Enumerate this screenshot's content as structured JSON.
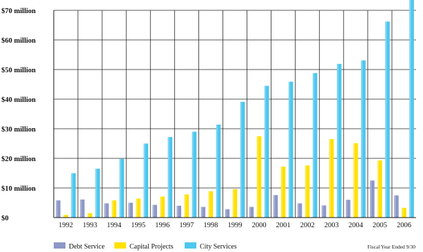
{
  "chart_data": {
    "type": "bar",
    "title": "",
    "xlabel": "",
    "ylabel": "",
    "ylim": [
      0,
      70
    ],
    "y_ticks": [
      {
        "value": 0,
        "label": "$0"
      },
      {
        "value": 10,
        "label": "$10 million"
      },
      {
        "value": 20,
        "label": "$20 million"
      },
      {
        "value": 30,
        "label": "$30 million"
      },
      {
        "value": 40,
        "label": "$40 million"
      },
      {
        "value": 50,
        "label": "$50 million"
      },
      {
        "value": 60,
        "label": "$60 million"
      },
      {
        "value": 70,
        "label": "$70 million"
      }
    ],
    "categories": [
      "1992",
      "1993",
      "1994",
      "1995",
      "1996",
      "1997",
      "1998",
      "1999",
      "2000",
      "2001",
      "2002",
      "2003",
      "2004",
      "2005",
      "2006"
    ],
    "series": [
      {
        "name": "Debt Service",
        "color": "#8d98c8",
        "values": [
          5.8,
          6.1,
          4.8,
          5.0,
          4.3,
          4.0,
          3.6,
          2.8,
          3.6,
          7.6,
          4.8,
          4.1,
          6.0,
          12.5,
          7.5
        ]
      },
      {
        "name": "Capital Projects",
        "color": "#ffe100",
        "values": [
          0.9,
          1.5,
          5.8,
          6.4,
          7.1,
          7.8,
          8.9,
          9.6,
          27.5,
          17.2,
          17.6,
          26.5,
          25.1,
          19.3,
          3.3
        ]
      },
      {
        "name": "City Services",
        "color": "#4cc7ef",
        "values": [
          15.0,
          16.5,
          19.8,
          25.0,
          27.2,
          29.0,
          31.4,
          39.1,
          44.5,
          45.9,
          48.8,
          51.9,
          53.1,
          66.2,
          75.0
        ]
      }
    ],
    "grid": true,
    "legend_position": "bottom-left",
    "footnote": "Fiscal Year Ended 9/30"
  }
}
